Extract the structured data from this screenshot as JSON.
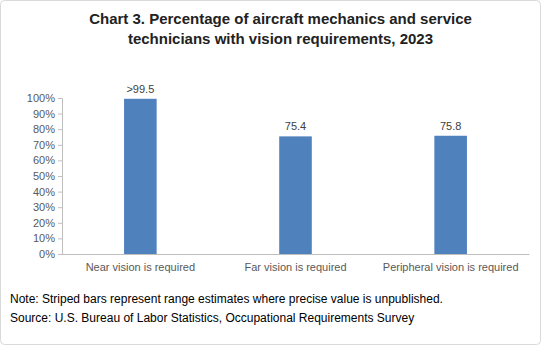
{
  "chart_data": {
    "type": "bar",
    "title": "Chart 3. Percentage of aircraft mechanics and service technicians with vision requirements, 2023",
    "categories": [
      "Near vision is required",
      "Far vision is required",
      "Peripheral vision is required"
    ],
    "values": [
      99.5,
      75.4,
      75.8
    ],
    "value_labels": [
      ">99.5",
      "75.4",
      "75.8"
    ],
    "data_labels": true,
    "color": "#4f81bd",
    "ylim": [
      0,
      100
    ],
    "yticks": [
      {
        "value": 0,
        "label": "0%"
      },
      {
        "value": 10,
        "label": "10%"
      },
      {
        "value": 20,
        "label": "20%"
      },
      {
        "value": 30,
        "label": "30%"
      },
      {
        "value": 40,
        "label": "40%"
      },
      {
        "value": 50,
        "label": "50%"
      },
      {
        "value": 60,
        "label": "60%"
      },
      {
        "value": 70,
        "label": "70%"
      },
      {
        "value": 80,
        "label": "80%"
      },
      {
        "value": 90,
        "label": "90%"
      },
      {
        "value": 100,
        "label": "100%"
      }
    ],
    "grid": false,
    "note": "Note: Striped bars represent range estimates where precise value is unpublished.",
    "source": "Source: U.S. Bureau of Labor Statistics, Occupational Requirements Survey"
  }
}
